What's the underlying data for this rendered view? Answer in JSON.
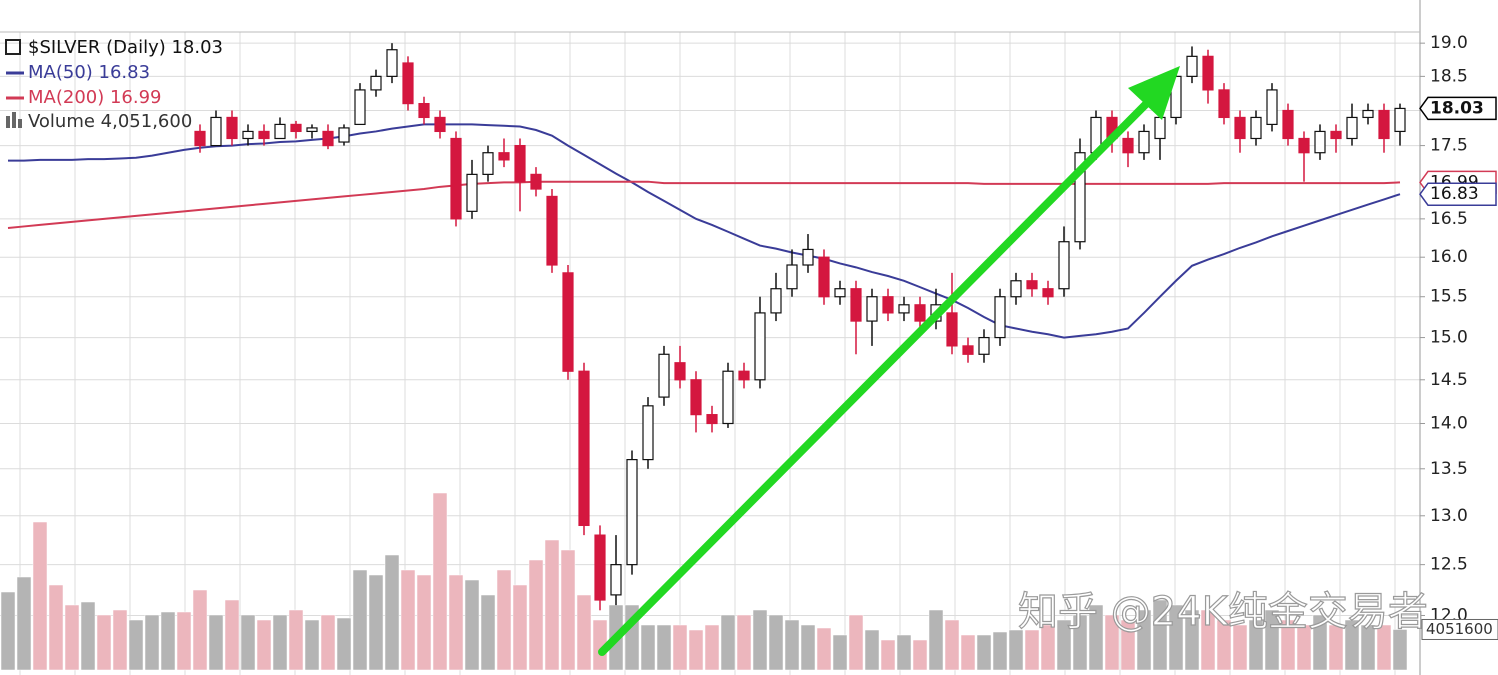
{
  "chart_data": {
    "type": "candlestick",
    "title": "$SILVER (Daily) 18.03",
    "open": [
      null,
      null,
      null,
      null,
      null,
      null,
      null,
      null,
      null,
      null,
      null,
      null,
      17.7,
      17.5,
      17.9,
      17.6,
      17.7,
      17.6,
      17.8,
      17.7,
      17.7,
      17.55,
      17.8,
      18.3,
      18.5,
      18.7,
      18.1,
      17.9,
      17.6,
      16.6,
      17.1,
      17.4,
      17.5,
      17.1,
      16.8,
      15.8,
      14.6,
      12.8,
      12.2,
      12.5,
      13.6,
      14.3,
      14.7,
      14.5,
      14.1,
      14.0,
      14.6,
      14.5,
      15.3,
      15.6,
      15.9,
      16.0,
      15.5,
      15.6,
      15.2,
      15.5,
      15.3,
      15.4,
      15.2,
      15.3,
      14.9,
      14.8,
      15.0,
      15.5,
      15.7,
      15.6,
      15.6,
      16.2,
      17.4,
      17.9,
      17.6,
      17.4,
      17.6,
      17.9,
      18.5,
      18.8,
      18.3,
      17.9,
      17.6,
      17.8,
      18.0,
      17.6,
      17.4,
      17.7,
      17.6,
      17.9,
      18.0,
      17.7
    ],
    "high": [
      null,
      null,
      null,
      null,
      null,
      null,
      null,
      null,
      null,
      null,
      null,
      null,
      17.8,
      18.0,
      18.0,
      17.8,
      17.8,
      17.9,
      17.85,
      17.8,
      17.8,
      17.8,
      18.4,
      18.6,
      19.0,
      18.8,
      18.2,
      18.0,
      17.7,
      17.3,
      17.5,
      17.6,
      17.6,
      17.2,
      16.9,
      15.9,
      14.7,
      12.9,
      12.8,
      13.7,
      14.3,
      14.9,
      14.9,
      14.6,
      14.2,
      14.7,
      14.7,
      15.5,
      15.8,
      16.1,
      16.3,
      16.1,
      15.7,
      15.7,
      15.6,
      15.6,
      15.5,
      15.5,
      15.6,
      15.8,
      15.0,
      15.1,
      15.6,
      15.8,
      15.8,
      15.7,
      16.4,
      17.6,
      18.0,
      18.0,
      17.7,
      17.8,
      18.1,
      18.6,
      18.95,
      18.9,
      18.4,
      18.0,
      18.0,
      18.4,
      18.1,
      17.7,
      17.8,
      17.8,
      18.1,
      18.1,
      18.1,
      18.1
    ],
    "low": [
      null,
      null,
      null,
      null,
      null,
      null,
      null,
      null,
      null,
      null,
      null,
      null,
      17.4,
      17.5,
      17.5,
      17.5,
      17.5,
      17.6,
      17.6,
      17.6,
      17.45,
      17.5,
      17.8,
      18.2,
      18.4,
      18.0,
      17.8,
      17.6,
      16.4,
      16.5,
      17.0,
      17.2,
      16.6,
      16.8,
      15.8,
      14.5,
      12.8,
      12.05,
      12.1,
      12.4,
      13.5,
      14.2,
      14.4,
      13.9,
      13.9,
      13.95,
      14.4,
      14.4,
      15.2,
      15.5,
      15.8,
      15.4,
      15.4,
      14.8,
      14.9,
      15.2,
      15.2,
      15.1,
      15.1,
      14.8,
      14.7,
      14.7,
      14.9,
      15.4,
      15.5,
      15.4,
      15.5,
      16.1,
      17.3,
      17.4,
      17.2,
      17.3,
      17.3,
      17.8,
      18.4,
      18.1,
      17.8,
      17.4,
      17.5,
      17.7,
      17.5,
      17.0,
      17.3,
      17.4,
      17.5,
      17.8,
      17.4,
      17.5
    ],
    "close": [
      null,
      null,
      null,
      null,
      null,
      null,
      null,
      null,
      null,
      null,
      null,
      null,
      17.5,
      17.9,
      17.6,
      17.7,
      17.6,
      17.8,
      17.7,
      17.75,
      17.5,
      17.75,
      18.3,
      18.5,
      18.9,
      18.1,
      17.9,
      17.7,
      16.5,
      17.1,
      17.4,
      17.3,
      17.0,
      16.9,
      15.9,
      14.6,
      12.9,
      12.15,
      12.5,
      13.6,
      14.2,
      14.8,
      14.5,
      14.1,
      14.0,
      14.6,
      14.5,
      15.3,
      15.6,
      15.9,
      16.1,
      15.5,
      15.6,
      15.2,
      15.5,
      15.3,
      15.4,
      15.2,
      15.4,
      14.9,
      14.8,
      15.0,
      15.5,
      15.7,
      15.6,
      15.5,
      16.2,
      17.4,
      17.9,
      17.6,
      17.4,
      17.7,
      17.9,
      18.5,
      18.8,
      18.3,
      17.9,
      17.6,
      17.9,
      18.3,
      17.6,
      17.4,
      17.7,
      17.6,
      17.9,
      18.0,
      17.6,
      18.03
    ],
    "up_color": "#ffffff",
    "down_color": "#d4173f",
    "series": [
      {
        "name": "MA(50) 16.83",
        "color": "#3a3c98",
        "values": [
          17.29,
          17.29,
          17.3,
          17.3,
          17.3,
          17.31,
          17.31,
          17.32,
          17.33,
          17.36,
          17.4,
          17.44,
          17.47,
          17.49,
          17.5,
          17.52,
          17.53,
          17.55,
          17.56,
          17.58,
          17.6,
          17.63,
          17.67,
          17.7,
          17.74,
          17.77,
          17.8,
          17.8,
          17.8,
          17.8,
          17.79,
          17.78,
          17.77,
          17.72,
          17.64,
          17.5,
          17.37,
          17.24,
          17.11,
          16.99,
          16.86,
          16.74,
          16.62,
          16.5,
          16.42,
          16.33,
          16.24,
          16.15,
          16.11,
          16.06,
          16.02,
          15.98,
          15.92,
          15.87,
          15.81,
          15.76,
          15.7,
          15.62,
          15.54,
          15.46,
          15.36,
          15.25,
          15.15,
          15.11,
          15.07,
          15.04,
          15.0,
          15.02,
          15.04,
          15.07,
          15.11,
          15.3,
          15.5,
          15.7,
          15.89,
          15.97,
          16.04,
          16.12,
          16.19,
          16.27,
          16.34,
          16.41,
          16.48,
          16.55,
          16.62,
          16.69,
          16.76,
          16.83
        ]
      },
      {
        "name": "MA(200) 16.99",
        "color": "#d23a55",
        "values": [
          16.38,
          16.4,
          16.42,
          16.44,
          16.46,
          16.48,
          16.5,
          16.52,
          16.54,
          16.56,
          16.58,
          16.6,
          16.62,
          16.64,
          16.66,
          16.68,
          16.7,
          16.72,
          16.74,
          16.76,
          16.78,
          16.8,
          16.82,
          16.84,
          16.86,
          16.88,
          16.9,
          16.93,
          16.95,
          16.97,
          16.98,
          16.99,
          16.99,
          17.0,
          17.0,
          17.0,
          17.0,
          17.0,
          17.0,
          17.0,
          17.0,
          16.98,
          16.98,
          16.98,
          16.98,
          16.98,
          16.98,
          16.98,
          16.98,
          16.98,
          16.98,
          16.98,
          16.98,
          16.98,
          16.98,
          16.98,
          16.98,
          16.98,
          16.98,
          16.98,
          16.98,
          16.97,
          16.97,
          16.97,
          16.97,
          16.97,
          16.97,
          16.97,
          16.97,
          16.97,
          16.97,
          16.97,
          16.97,
          16.97,
          16.97,
          16.97,
          16.98,
          16.98,
          16.98,
          16.98,
          16.98,
          16.98,
          16.98,
          16.98,
          16.98,
          16.98,
          16.98,
          16.99
        ]
      }
    ],
    "volume": {
      "name": "Volume 4,051,600",
      "axis": "y2",
      "last_label": "4051600",
      "values": [
        7800000,
        9300000,
        14800000,
        8500000,
        6500000,
        6800000,
        5500000,
        6000000,
        5000000,
        5500000,
        5800000,
        5800000,
        8000000,
        5500000,
        7000000,
        5500000,
        5000000,
        5500000,
        6000000,
        5000000,
        5500000,
        5200000,
        10000000,
        9500000,
        11500000,
        10000000,
        9500000,
        17700000,
        9500000,
        9000000,
        7500000,
        10000000,
        8500000,
        11000000,
        13000000,
        12000000,
        7500000,
        5000000,
        6500000,
        6500000,
        4500000,
        4500000,
        4500000,
        4000000,
        4500000,
        5500000,
        5500000,
        6000000,
        5500000,
        5000000,
        4500000,
        4200000,
        3500000,
        5500000,
        4000000,
        3000000,
        3500000,
        3000000,
        6000000,
        5000000,
        3500000,
        3500000,
        3800000,
        4000000,
        4000000,
        4500000,
        5000000,
        5500000,
        6500000,
        5500000,
        5000000,
        6000000,
        7000000,
        6500000,
        6000000,
        6000000,
        5000000,
        4500000,
        5000000,
        6000000,
        5000000,
        4500000,
        5500000,
        4500000,
        5000000,
        4500000,
        4500000,
        4051600
      ],
      "colors": [
        "#b4b4b4",
        "#b4b4b4",
        "#ecb6bd",
        "#ecb6bd",
        "#ecb6bd",
        "#b4b4b4",
        "#ecb6bd",
        "#ecb6bd",
        "#b4b4b4",
        "#b4b4b4",
        "#b4b4b4",
        "#ecb6bd",
        "#ecb6bd",
        "#b4b4b4",
        "#ecb6bd",
        "#b4b4b4",
        "#ecb6bd",
        "#b4b4b4",
        "#ecb6bd",
        "#b4b4b4",
        "#ecb6bd",
        "#b4b4b4",
        "#b4b4b4",
        "#b4b4b4",
        "#b4b4b4",
        "#ecb6bd",
        "#ecb6bd",
        "#ecb6bd",
        "#ecb6bd",
        "#b4b4b4",
        "#b4b4b4",
        "#ecb6bd",
        "#ecb6bd",
        "#ecb6bd",
        "#ecb6bd",
        "#ecb6bd",
        "#ecb6bd",
        "#ecb6bd",
        "#b4b4b4",
        "#b4b4b4",
        "#b4b4b4",
        "#b4b4b4",
        "#ecb6bd",
        "#ecb6bd",
        "#ecb6bd",
        "#b4b4b4",
        "#ecb6bd",
        "#b4b4b4",
        "#b4b4b4",
        "#b4b4b4",
        "#b4b4b4",
        "#ecb6bd",
        "#b4b4b4",
        "#ecb6bd",
        "#b4b4b4",
        "#ecb6bd",
        "#b4b4b4",
        "#ecb6bd",
        "#b4b4b4",
        "#ecb6bd",
        "#ecb6bd",
        "#b4b4b4",
        "#b4b4b4",
        "#b4b4b4",
        "#ecb6bd",
        "#ecb6bd",
        "#b4b4b4",
        "#b4b4b4",
        "#b4b4b4",
        "#ecb6bd",
        "#ecb6bd",
        "#b4b4b4",
        "#b4b4b4",
        "#b4b4b4",
        "#b4b4b4",
        "#ecb6bd",
        "#ecb6bd",
        "#ecb6bd",
        "#b4b4b4",
        "#b4b4b4",
        "#ecb6bd",
        "#ecb6bd",
        "#b4b4b4",
        "#ecb6bd",
        "#b4b4b4",
        "#b4b4b4",
        "#ecb6bd",
        "#b4b4b4"
      ]
    },
    "log_scale": true,
    "ylim": [
      11.44,
      19.67
    ],
    "yticks": [
      {
        "value": 12,
        "label": "12.0"
      },
      12.5,
      {
        "value": 13,
        "label": "13.0"
      },
      13.5,
      {
        "value": 14,
        "label": "14.0"
      },
      14.5,
      {
        "value": 15,
        "label": "15.0"
      },
      15.5,
      {
        "value": 16,
        "label": "16.0"
      },
      16.5,
      17.5,
      {
        "value": 18,
        "label": "18.0"
      },
      18.5,
      {
        "value": 19,
        "label": "19.0"
      }
    ],
    "y2lim": [
      0,
      20000000
    ],
    "price_labels": [
      {
        "value": 16.99,
        "label": "16.99",
        "color": "#d23a55"
      },
      {
        "value": 16.83,
        "label": "16.83",
        "color": "#3a3c98"
      },
      {
        "value": 18.03,
        "label": "18.03",
        "color": "#000000"
      }
    ]
  },
  "watermark": "知乎 @24K纯金交易者"
}
